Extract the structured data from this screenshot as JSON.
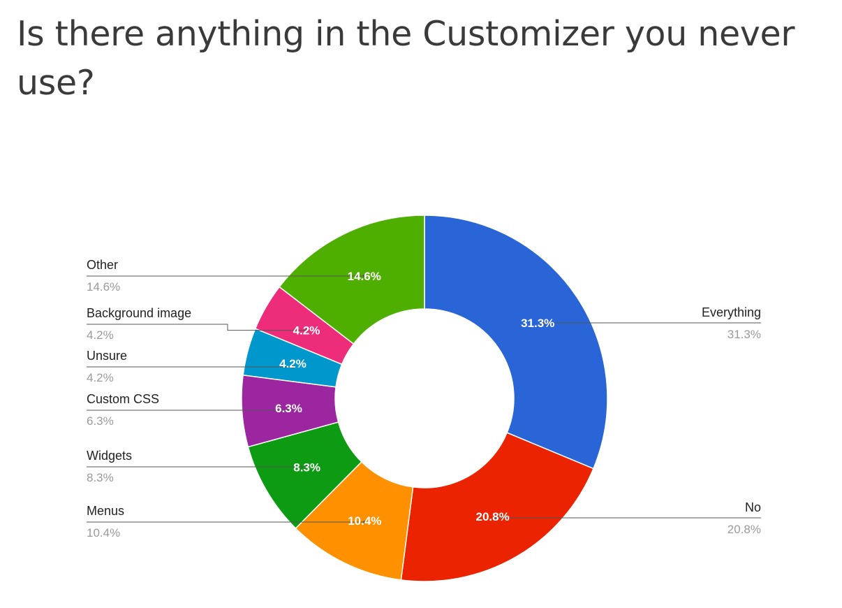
{
  "page": {
    "title": "Is there anything in the Customizer you never use?"
  },
  "chart_data": {
    "type": "pie",
    "variant": "donut",
    "title": "",
    "legend_placement": "labels with leader lines on both sides",
    "categories": [
      "Everything",
      "No",
      "Menus",
      "Widgets",
      "Custom CSS",
      "Unsure",
      "Background image",
      "Other"
    ],
    "values": [
      31.3,
      20.8,
      10.4,
      8.3,
      6.3,
      4.2,
      4.2,
      14.6
    ],
    "value_labels": [
      "31.3%",
      "20.8%",
      "10.4%",
      "8.3%",
      "6.3%",
      "4.2%",
      "4.2%",
      "14.6%"
    ],
    "colors": [
      "#2965d6",
      "#ec2300",
      "#ff9100",
      "#0c9b12",
      "#9c25a0",
      "#0097cc",
      "#ed2c7a",
      "#4faf00"
    ],
    "label_side": [
      "right",
      "right",
      "left",
      "left",
      "left",
      "left",
      "left",
      "left"
    ]
  }
}
